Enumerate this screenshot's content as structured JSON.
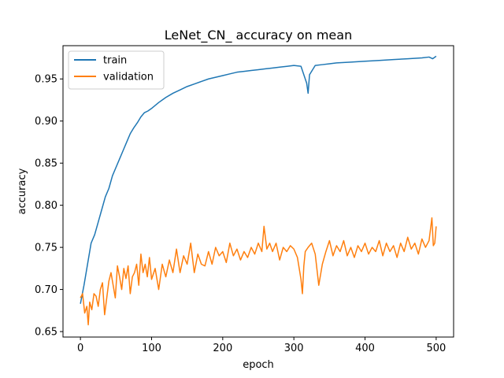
{
  "chart_data": {
    "type": "line",
    "title": "LeNet_CN_ accuracy on mean",
    "xlabel": "epoch",
    "ylabel": "accuracy",
    "xlim": [
      -24.5,
      524.5
    ],
    "ylim": [
      0.6435,
      0.9895
    ],
    "xticks": [
      0,
      100,
      200,
      300,
      400,
      500
    ],
    "xtick_labels": [
      "0",
      "100",
      "200",
      "300",
      "400",
      "500"
    ],
    "yticks": [
      0.65,
      0.7,
      0.75,
      0.8,
      0.85,
      0.9,
      0.95
    ],
    "ytick_labels": [
      "0.65",
      "0.70",
      "0.75",
      "0.80",
      "0.85",
      "0.90",
      "0.95"
    ],
    "grid": false,
    "legend_position": "top-left",
    "series": [
      {
        "name": "train",
        "color": "#1f77b4",
        "x": [
          0,
          5,
          10,
          15,
          20,
          25,
          30,
          35,
          40,
          45,
          50,
          55,
          60,
          65,
          70,
          75,
          80,
          85,
          90,
          95,
          100,
          110,
          120,
          130,
          140,
          150,
          160,
          170,
          180,
          190,
          200,
          210,
          220,
          230,
          240,
          250,
          260,
          270,
          280,
          290,
          300,
          310,
          318,
          320,
          322,
          330,
          340,
          350,
          360,
          380,
          400,
          420,
          440,
          460,
          480,
          490,
          495,
          500
        ],
        "y": [
          0.683,
          0.705,
          0.73,
          0.755,
          0.765,
          0.78,
          0.795,
          0.81,
          0.82,
          0.835,
          0.845,
          0.855,
          0.865,
          0.875,
          0.885,
          0.892,
          0.898,
          0.905,
          0.91,
          0.912,
          0.915,
          0.922,
          0.928,
          0.933,
          0.937,
          0.941,
          0.944,
          0.947,
          0.95,
          0.952,
          0.954,
          0.956,
          0.958,
          0.959,
          0.96,
          0.961,
          0.962,
          0.963,
          0.964,
          0.965,
          0.966,
          0.965,
          0.945,
          0.933,
          0.955,
          0.966,
          0.967,
          0.968,
          0.969,
          0.97,
          0.971,
          0.972,
          0.973,
          0.974,
          0.975,
          0.976,
          0.974,
          0.977
        ]
      },
      {
        "name": "validation",
        "color": "#ff7f0e",
        "x": [
          0,
          3,
          6,
          9,
          11,
          13,
          16,
          19,
          22,
          25,
          28,
          31,
          34,
          37,
          40,
          43,
          46,
          49,
          52,
          55,
          58,
          61,
          64,
          67,
          70,
          73,
          76,
          79,
          82,
          85,
          88,
          91,
          94,
          97,
          100,
          105,
          110,
          115,
          120,
          125,
          130,
          135,
          140,
          145,
          150,
          155,
          160,
          165,
          170,
          175,
          180,
          185,
          190,
          195,
          200,
          205,
          210,
          215,
          220,
          225,
          230,
          235,
          240,
          245,
          250,
          255,
          258,
          262,
          266,
          270,
          275,
          280,
          285,
          290,
          295,
          300,
          305,
          310,
          312,
          314,
          316,
          320,
          325,
          330,
          335,
          340,
          345,
          350,
          355,
          360,
          365,
          370,
          375,
          380,
          385,
          390,
          395,
          400,
          405,
          410,
          415,
          420,
          425,
          430,
          435,
          440,
          445,
          450,
          455,
          460,
          465,
          470,
          475,
          480,
          485,
          490,
          494,
          496,
          498,
          500
        ],
        "y": [
          0.69,
          0.695,
          0.672,
          0.68,
          0.658,
          0.685,
          0.676,
          0.695,
          0.692,
          0.68,
          0.7,
          0.708,
          0.67,
          0.69,
          0.71,
          0.72,
          0.705,
          0.69,
          0.728,
          0.715,
          0.7,
          0.725,
          0.713,
          0.728,
          0.695,
          0.715,
          0.72,
          0.73,
          0.705,
          0.742,
          0.72,
          0.73,
          0.715,
          0.738,
          0.712,
          0.725,
          0.7,
          0.73,
          0.715,
          0.735,
          0.72,
          0.748,
          0.72,
          0.74,
          0.73,
          0.755,
          0.72,
          0.742,
          0.73,
          0.728,
          0.745,
          0.73,
          0.75,
          0.74,
          0.745,
          0.732,
          0.755,
          0.74,
          0.748,
          0.735,
          0.745,
          0.738,
          0.75,
          0.742,
          0.755,
          0.745,
          0.775,
          0.748,
          0.755,
          0.745,
          0.755,
          0.735,
          0.75,
          0.745,
          0.752,
          0.748,
          0.738,
          0.712,
          0.695,
          0.728,
          0.745,
          0.75,
          0.755,
          0.742,
          0.705,
          0.73,
          0.745,
          0.758,
          0.74,
          0.752,
          0.745,
          0.758,
          0.74,
          0.75,
          0.738,
          0.752,
          0.745,
          0.755,
          0.742,
          0.75,
          0.745,
          0.758,
          0.74,
          0.755,
          0.745,
          0.752,
          0.738,
          0.755,
          0.745,
          0.762,
          0.748,
          0.755,
          0.742,
          0.76,
          0.75,
          0.758,
          0.785,
          0.752,
          0.755,
          0.775
        ]
      }
    ]
  }
}
